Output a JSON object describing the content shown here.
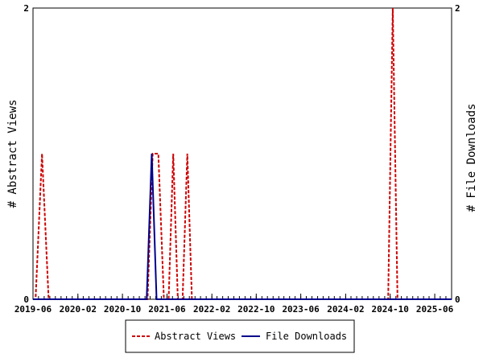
{
  "chart_data": {
    "type": "line",
    "x_tick_labels": [
      "2019-06",
      "2020-02",
      "2020-10",
      "2021-06",
      "2022-02",
      "2022-10",
      "2023-06",
      "2024-02",
      "2024-10",
      "2025-06"
    ],
    "xlim": [
      "2019-06-01",
      "2025-09-01"
    ],
    "y_left": {
      "label": "# Abstract Views",
      "ylim": [
        0,
        2
      ],
      "ticks": [
        "0",
        "2"
      ]
    },
    "y_right": {
      "label": "# File Downloads",
      "ylim": [
        0,
        2
      ],
      "ticks": [
        "0",
        "2"
      ]
    },
    "legend_position": "bottom",
    "series": [
      {
        "name": "Abstract Views",
        "axis": "left",
        "color": "#cc0000",
        "style": "dashed",
        "points": [
          [
            "2019-06-01",
            0
          ],
          [
            "2019-06-15",
            0
          ],
          [
            "2019-07-20",
            1
          ],
          [
            "2019-08-25",
            0
          ],
          [
            "2021-02-15",
            0
          ],
          [
            "2021-03-15",
            1
          ],
          [
            "2021-04-15",
            1
          ],
          [
            "2021-05-15",
            0
          ],
          [
            "2021-06-10",
            0
          ],
          [
            "2021-07-05",
            1
          ],
          [
            "2021-07-30",
            0
          ],
          [
            "2021-08-25",
            0
          ],
          [
            "2021-09-20",
            1
          ],
          [
            "2021-10-15",
            0
          ],
          [
            "2024-09-20",
            0
          ],
          [
            "2024-10-15",
            2
          ],
          [
            "2024-11-10",
            0
          ],
          [
            "2025-09-01",
            0
          ]
        ]
      },
      {
        "name": "File Downloads",
        "axis": "right",
        "color": "#00008b",
        "style": "solid",
        "points": [
          [
            "2019-06-01",
            0
          ],
          [
            "2021-02-10",
            0
          ],
          [
            "2021-03-10",
            1
          ],
          [
            "2021-04-05",
            0
          ],
          [
            "2025-09-01",
            0
          ]
        ]
      }
    ]
  }
}
